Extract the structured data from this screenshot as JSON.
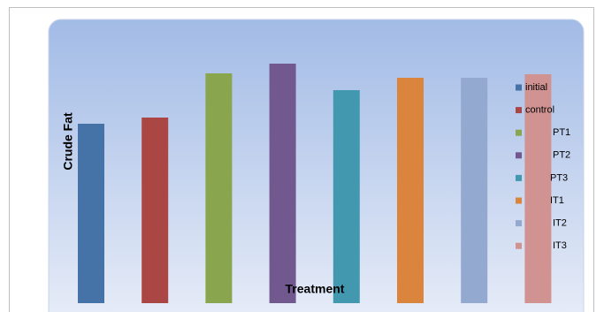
{
  "chart_data": {
    "type": "bar",
    "x_label": "Treatment",
    "y_label": "Crude Fat",
    "ylim": [
      0,
      300
    ],
    "series": [
      {
        "name": "initial",
        "color": "#4572a7",
        "values": [
          203
        ]
      },
      {
        "name": "control",
        "color": "#aa4643",
        "values": [
          210
        ]
      },
      {
        "name": "PT1",
        "color": "#89a54e",
        "values": [
          260
        ]
      },
      {
        "name": "PT2",
        "color": "#71588f",
        "values": [
          271
        ]
      },
      {
        "name": "PT3",
        "color": "#4198af",
        "values": [
          241
        ]
      },
      {
        "name": "IT1",
        "color": "#db843d",
        "values": [
          255
        ]
      },
      {
        "name": "IT2",
        "color": "#93a9cf",
        "values": [
          255
        ]
      },
      {
        "name": "IT3",
        "color": "#d19392",
        "values": [
          259
        ]
      }
    ]
  }
}
